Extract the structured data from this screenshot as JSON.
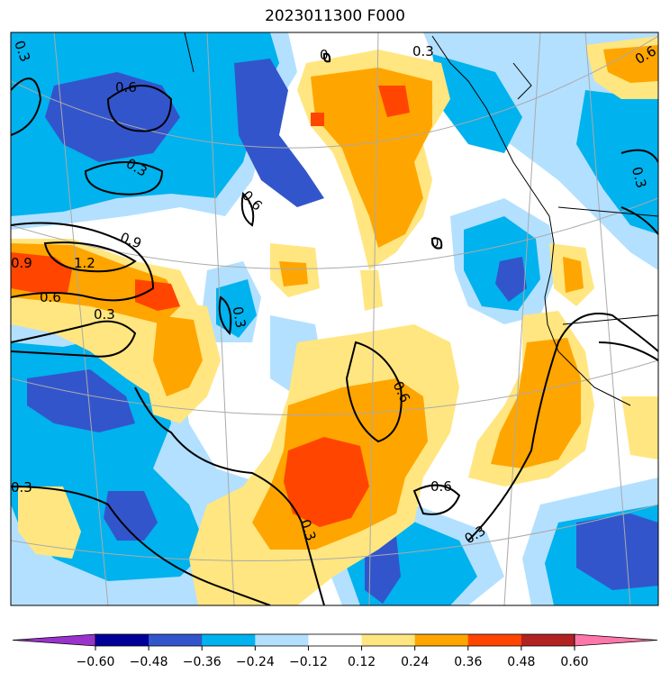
{
  "title": "2023011300 F000",
  "colorbar": {
    "colors": [
      "#9933cc",
      "#000099",
      "#3355cc",
      "#00b2ee",
      "#b3e0ff",
      "#ffffff",
      "#ffe680",
      "#ffa500",
      "#ff4500",
      "#b22222",
      "#ff77aa"
    ],
    "ticks": [
      "−0.60",
      "−0.48",
      "−0.36",
      "−0.24",
      "−0.12",
      "0.12",
      "0.24",
      "0.36",
      "0.48",
      "0.60"
    ]
  },
  "contour_labels": [
    "0.3",
    "0.6",
    "0.3",
    "0.6",
    "0.9",
    "1.2",
    "0.9",
    "0.6",
    "0.3",
    "0.3",
    "0.6",
    "0.6",
    "0.3",
    "0.3",
    "0.3",
    "0.3",
    "0",
    "0",
    "0.3",
    "0.6"
  ],
  "palette": {
    "deep_blue": "#3355cc",
    "mid_blue": "#00b2ee",
    "light_blue": "#b3e0ff",
    "yellow": "#ffe680",
    "orange": "#ffa500",
    "red_orange": "#ff4500"
  }
}
